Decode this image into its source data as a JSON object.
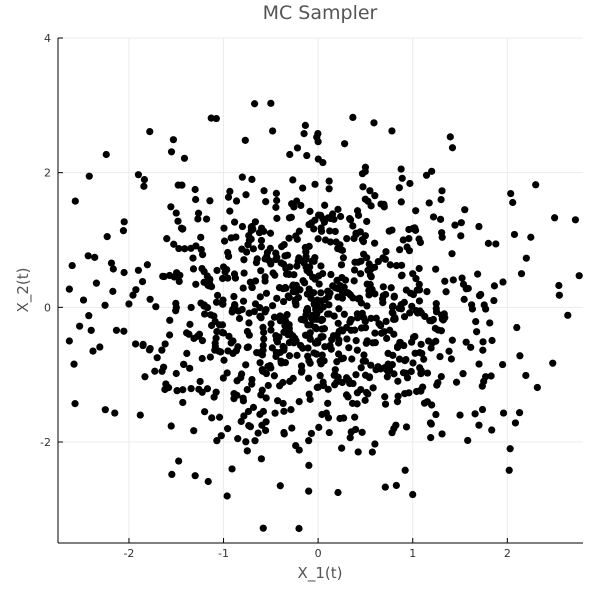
{
  "chart_data": {
    "type": "scatter",
    "title": "MC Sampler",
    "xlabel": "X_1(t)",
    "ylabel": "X_2(t)",
    "xlim": [
      -2.75,
      2.8
    ],
    "ylim": [
      -3.5,
      4.0
    ],
    "xticks": [
      -2,
      -1,
      0,
      1,
      2
    ],
    "yticks": [
      -2,
      0,
      2,
      4
    ],
    "grid": true,
    "legend": "none",
    "marker_color": "#000000",
    "series": [
      {
        "points": [
          [
            -0.5,
            3.03
          ],
          [
            0.59,
            2.74
          ],
          [
            0.78,
            2.62
          ],
          [
            -1.78,
            2.61
          ],
          [
            -1.13,
            2.81
          ],
          [
            0.0,
            2.46
          ],
          [
            -2.24,
            2.27
          ],
          [
            -1.53,
            2.49
          ],
          [
            1.42,
            2.37
          ],
          [
            0.28,
            2.43
          ],
          [
            -1.55,
            2.31
          ],
          [
            -0.77,
            2.48
          ],
          [
            -1.9,
            1.97
          ],
          [
            0.97,
            1.84
          ],
          [
            2.3,
            1.82
          ],
          [
            2.72,
            1.3
          ],
          [
            1.7,
            1.2
          ],
          [
            -2.05,
            1.27
          ],
          [
            -2.23,
            1.05
          ],
          [
            2.5,
            1.33
          ],
          [
            -2.6,
            0.62
          ],
          [
            2.76,
            0.47
          ],
          [
            -2.63,
            0.27
          ],
          [
            2.55,
            0.18
          ],
          [
            -2.63,
            -0.5
          ],
          [
            2.48,
            -0.83
          ],
          [
            -2.57,
            -1.43
          ],
          [
            -2.25,
            -1.52
          ],
          [
            2.03,
            -2.1
          ],
          [
            1.96,
            -1.57
          ],
          [
            2.02,
            -2.42
          ],
          [
            -0.58,
            -3.28
          ],
          [
            1.0,
            -2.78
          ],
          [
            0.21,
            -2.75
          ],
          [
            -0.1,
            -2.73
          ],
          [
            -0.4,
            -2.65
          ],
          [
            0.71,
            -2.67
          ],
          [
            -1.3,
            -2.5
          ],
          [
            -0.91,
            -2.4
          ],
          [
            0.92,
            -2.42
          ],
          [
            -2.38,
            -0.65
          ],
          [
            -2.15,
            -1.57
          ],
          [
            -1.88,
            -1.6
          ],
          [
            -1.62,
            -1.22
          ],
          [
            1.5,
            -1.6
          ],
          [
            1.7,
            -1.75
          ],
          [
            1.31,
            -1.88
          ],
          [
            0.6,
            -2.03
          ],
          [
            -0.6,
            -2.25
          ],
          [
            -0.2,
            -2.12
          ],
          [
            -0.1,
            -1.98
          ],
          [
            -0.3,
            2.27
          ],
          [
            0.05,
            2.15
          ],
          [
            0.5,
            2.08
          ],
          [
            1.2,
            2.02
          ],
          [
            -0.7,
            1.9
          ],
          [
            -1.3,
            1.75
          ],
          [
            1.3,
            1.6
          ],
          [
            1.55,
            1.45
          ],
          [
            -1.5,
            1.4
          ],
          [
            -1.6,
            1.02
          ],
          [
            1.8,
            0.95
          ],
          [
            -1.9,
            0.55
          ],
          [
            2.15,
            0.5
          ],
          [
            -2.0,
            0.05
          ],
          [
            2.1,
            -0.3
          ],
          [
            -1.85,
            -0.55
          ],
          [
            1.95,
            -0.85
          ],
          [
            -1.65,
            -0.95
          ],
          [
            1.75,
            -1.1
          ],
          [
            -1.2,
            -1.55
          ],
          [
            1.2,
            -1.45
          ],
          [
            -0.85,
            -1.95
          ],
          [
            0.35,
            -1.85
          ],
          [
            -0.55,
            -1.7
          ],
          [
            0.8,
            -1.8
          ],
          [
            -0.2,
            -1.4
          ],
          [
            0.3,
            -1.3
          ],
          [
            -0.6,
            0.9
          ],
          [
            0.4,
            1.1
          ],
          [
            -0.3,
            0.6
          ],
          [
            0.2,
            0.4
          ],
          [
            0.1,
            -0.1
          ],
          [
            -0.1,
            0.2
          ],
          [
            0.3,
            -0.3
          ],
          [
            -0.4,
            -0.2
          ],
          [
            0.6,
            0.2
          ],
          [
            -0.7,
            0.3
          ],
          [
            0.8,
            -0.4
          ],
          [
            -0.9,
            -0.5
          ],
          [
            1.0,
            0.5
          ],
          [
            -1.0,
            0.6
          ],
          [
            0.5,
            -0.8
          ],
          [
            -0.5,
            -0.9
          ],
          [
            1.2,
            -0.2
          ],
          [
            -1.2,
            -0.1
          ],
          [
            0.9,
            1.0
          ],
          [
            -0.8,
            1.2
          ],
          [
            0.4,
            -1.0
          ],
          [
            -0.3,
            -1.1
          ]
        ]
      }
    ]
  }
}
